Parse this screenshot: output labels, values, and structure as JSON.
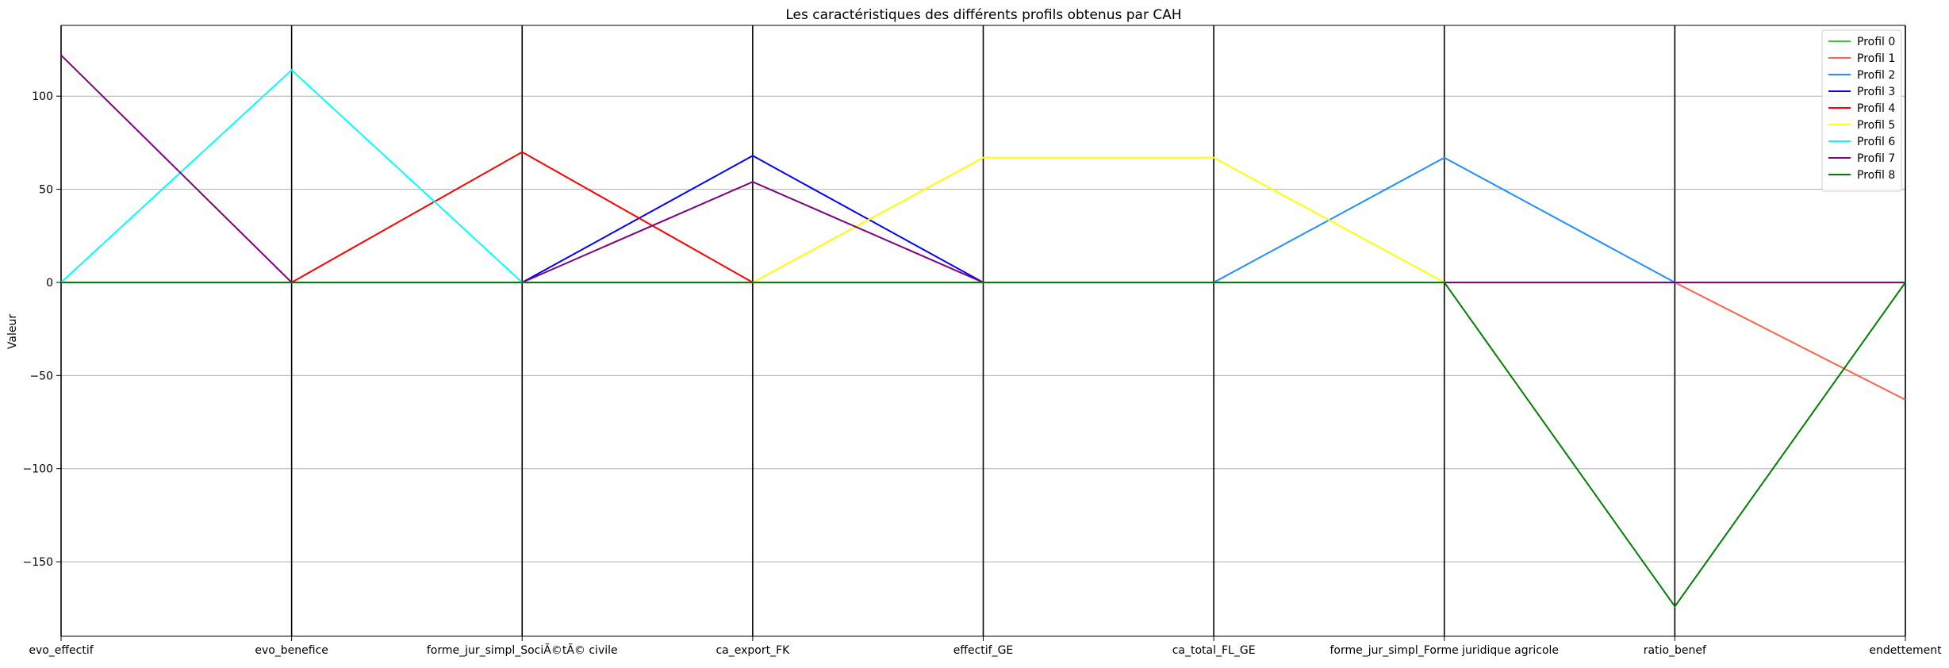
{
  "chart_data": {
    "type": "line",
    "title": "Les caractéristiques des différents profils obtenus par CAH",
    "xlabel": "",
    "ylabel": "Valeur",
    "ylim": [
      -190,
      138
    ],
    "yticks": [
      100,
      50,
      0,
      -50,
      -100,
      -150
    ],
    "grid": true,
    "legend_position": "top-right",
    "categories": [
      "evo_effectif",
      "evo_benefice",
      "forme_jur_simpl_SociÃ©tÃ© civile",
      "ca_export_FK",
      "effectif_GE",
      "ca_total_FL_GE",
      "forme_jur_simpl_Forme juridique agricole",
      "ratio_benef",
      "endettement"
    ],
    "series": [
      {
        "name": "Profil 0",
        "color": "#32cd32",
        "values": [
          0,
          0,
          0,
          0,
          0,
          0,
          0,
          0,
          0
        ]
      },
      {
        "name": "Profil 1",
        "color": "#ff6347",
        "values": [
          0,
          0,
          0,
          0,
          0,
          0,
          0,
          0,
          -63
        ]
      },
      {
        "name": "Profil 2",
        "color": "#1e90ff",
        "values": [
          0,
          0,
          0,
          0,
          0,
          0,
          67,
          0,
          0
        ]
      },
      {
        "name": "Profil 3",
        "color": "#0000ff",
        "values": [
          0,
          0,
          0,
          68,
          0,
          0,
          0,
          0,
          0
        ]
      },
      {
        "name": "Profil 4",
        "color": "#ff0000",
        "values": [
          0,
          0,
          70,
          0,
          0,
          0,
          0,
          0,
          0
        ]
      },
      {
        "name": "Profil 5",
        "color": "#ffff00",
        "values": [
          0,
          0,
          0,
          0,
          67,
          67,
          0,
          0,
          0
        ]
      },
      {
        "name": "Profil 6",
        "color": "#00ffff",
        "values": [
          0,
          114,
          0,
          0,
          0,
          0,
          0,
          0,
          0
        ]
      },
      {
        "name": "Profil 7",
        "color": "#800080",
        "values": [
          122,
          0,
          0,
          54,
          0,
          0,
          0,
          0,
          0
        ]
      },
      {
        "name": "Profil 8",
        "color": "#008000",
        "values": [
          0,
          0,
          0,
          0,
          0,
          0,
          0,
          -174,
          0
        ]
      }
    ]
  }
}
